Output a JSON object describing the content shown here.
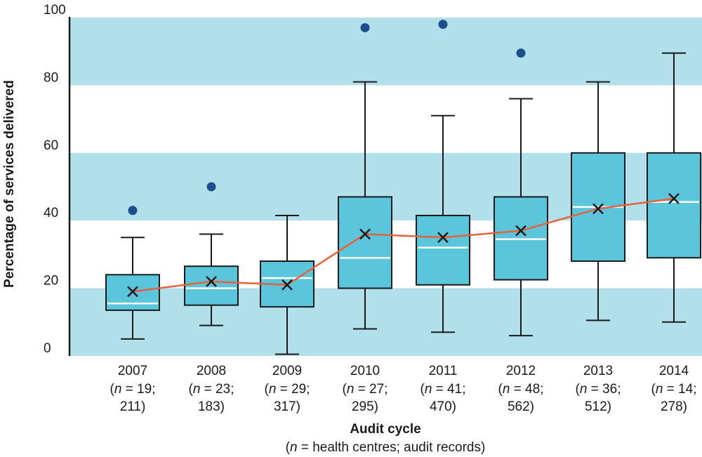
{
  "colors": {
    "band": "#b2e0ea",
    "box_fill": "#5bc5dc",
    "box_stroke": "#1a1a1a",
    "median": "#ffffff",
    "mean_line": "#e8603c",
    "outlier": "#1f4e8c",
    "axis": "#1a1a1a"
  },
  "chart_data": {
    "type": "box",
    "title": "",
    "xlabel": "Audit cycle",
    "xlabel_sub_pre": "(",
    "xlabel_sub_n": "n",
    "xlabel_sub_post": " = health centres; audit records)",
    "ylabel": "Percentage of services delivered",
    "ylim": [
      0,
      100
    ],
    "yticks": [
      "0",
      "20",
      "40",
      "60",
      "80",
      "100"
    ],
    "alternating_bands": true,
    "categories": [
      {
        "year": "2007",
        "n_pre": "(",
        "n": "n",
        "n_post": " = 19;",
        "records": "211)"
      },
      {
        "year": "2008",
        "n_pre": "(",
        "n": "n",
        "n_post": " = 23;",
        "records": "183)"
      },
      {
        "year": "2009",
        "n_pre": "(",
        "n": "n",
        "n_post": " = 29;",
        "records": "317)"
      },
      {
        "year": "2010",
        "n_pre": "(",
        "n": "n",
        "n_post": " = 27;",
        "records": "295)"
      },
      {
        "year": "2011",
        "n_pre": "(",
        "n": "n",
        "n_post": " = 41;",
        "records": "470)"
      },
      {
        "year": "2012",
        "n_pre": "(",
        "n": "n",
        "n_post": " = 48;",
        "records": "562)"
      },
      {
        "year": "2013",
        "n_pre": "(",
        "n": "n",
        "n_post": " = 36;",
        "records": "512)"
      },
      {
        "year": "2014",
        "n_pre": "(",
        "n": "n",
        "n_post": " = 14;",
        "records": "278)"
      }
    ],
    "boxes": [
      {
        "min": 5,
        "q1": 13.5,
        "median": 15.5,
        "q3": 24,
        "max": 35,
        "mean": 19,
        "outliers": [
          43
        ]
      },
      {
        "min": 9,
        "q1": 15,
        "median": 20,
        "q3": 26.5,
        "max": 36,
        "mean": 22,
        "outliers": [
          50
        ]
      },
      {
        "min": 0.5,
        "q1": 14.5,
        "median": 23,
        "q3": 28,
        "max": 41.5,
        "mean": 21,
        "outliers": []
      },
      {
        "min": 8,
        "q1": 20,
        "median": 29,
        "q3": 47,
        "max": 81,
        "mean": 36,
        "outliers": [
          97
        ]
      },
      {
        "min": 7,
        "q1": 21,
        "median": 32,
        "q3": 41.5,
        "max": 71,
        "mean": 35,
        "outliers": [
          98
        ]
      },
      {
        "min": 6,
        "q1": 22.5,
        "median": 34.5,
        "q3": 47,
        "max": 76,
        "mean": 37,
        "outliers": [
          89.5
        ]
      },
      {
        "min": 10.5,
        "q1": 28,
        "median": 44,
        "q3": 60,
        "max": 81,
        "mean": 43.5,
        "outliers": []
      },
      {
        "min": 10,
        "q1": 29,
        "median": 45.5,
        "q3": 60,
        "max": 89.5,
        "mean": 46.5,
        "outliers": []
      }
    ]
  }
}
